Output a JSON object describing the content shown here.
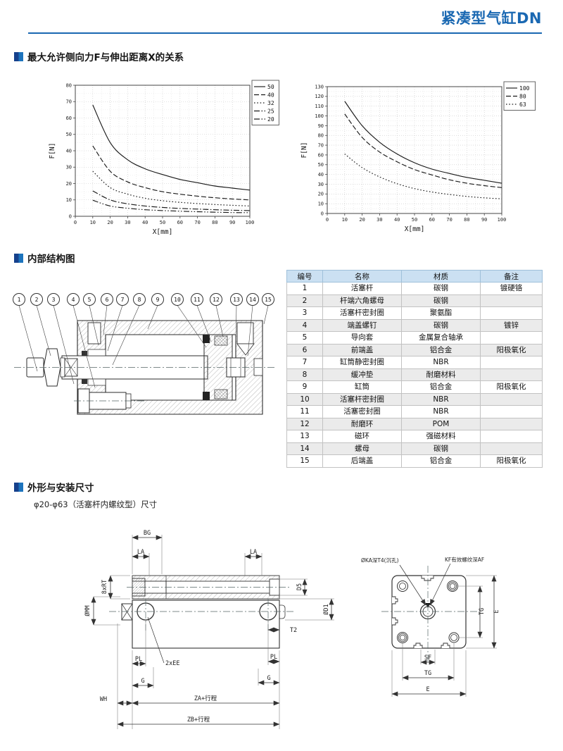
{
  "page": {
    "title": "紧凑型气缸DN",
    "accent_color": "#1a68b2",
    "bullet_dark": "#16418c",
    "bullet_light": "#1d74bd"
  },
  "sections": {
    "force_relation": {
      "title": "最大允许侧向力F与伸出距离X的关系"
    },
    "internal_structure": {
      "title": "内部结构图"
    },
    "outline_dimensions": {
      "title": "外形与安装尺寸",
      "subtitle": "φ20-φ63（活塞杆内螺纹型）尺寸"
    }
  },
  "chart_data": [
    {
      "type": "line",
      "title": "",
      "xlabel": "X[mm]",
      "ylabel": "F[N]",
      "xlim": [
        0,
        100
      ],
      "ylim": [
        0,
        80
      ],
      "xtick_step": 10,
      "ytick_step": 10,
      "grid": true,
      "legend_position": "upper right",
      "x": [
        10,
        20,
        30,
        40,
        50,
        60,
        70,
        80,
        90,
        100
      ],
      "series": [
        {
          "name": "50",
          "dash": "solid",
          "values": [
            68,
            45,
            34.5,
            29,
            25.5,
            22.5,
            20.5,
            18.5,
            17.2,
            16
          ]
        },
        {
          "name": "40",
          "dash": "dashed",
          "values": [
            43,
            27.5,
            21,
            17.5,
            15,
            13.5,
            12.3,
            11.3,
            10.6,
            10
          ]
        },
        {
          "name": "32",
          "dash": "dotted",
          "values": [
            27.5,
            17.5,
            13.5,
            11,
            9.5,
            8.5,
            7.8,
            7.2,
            6.7,
            6.3
          ]
        },
        {
          "name": "25",
          "dash": "dashdot",
          "values": [
            15.5,
            10,
            7.6,
            6.3,
            5.4,
            4.8,
            4.4,
            4.0,
            3.7,
            3.5
          ]
        },
        {
          "name": "20",
          "dash": "dashdotdot",
          "values": [
            9.8,
            6.3,
            4.9,
            4.0,
            3.5,
            3.1,
            2.8,
            2.5,
            2.3,
            2.2
          ]
        }
      ]
    },
    {
      "type": "line",
      "title": "",
      "xlabel": "X[mm]",
      "ylabel": "F[N]",
      "xlim": [
        0,
        100
      ],
      "ylim": [
        0,
        130
      ],
      "xtick_step": 10,
      "ytick_step": 10,
      "grid": true,
      "legend_position": "upper right",
      "x": [
        10,
        20,
        30,
        40,
        50,
        60,
        70,
        80,
        90,
        100
      ],
      "series": [
        {
          "name": "100",
          "dash": "solid",
          "values": [
            115,
            90,
            73,
            61,
            52,
            45.5,
            41,
            37,
            34,
            31
          ]
        },
        {
          "name": "80",
          "dash": "dashed",
          "values": [
            102,
            78,
            63,
            53,
            45,
            39.5,
            34.5,
            31,
            28.5,
            26.5
          ]
        },
        {
          "name": "63",
          "dash": "dotted",
          "values": [
            61,
            47,
            37.5,
            30.5,
            25.5,
            22,
            19.5,
            17.5,
            16,
            15
          ]
        }
      ]
    }
  ],
  "parts_table": {
    "headers": [
      "编号",
      "名称",
      "材质",
      "备注"
    ],
    "rows": [
      [
        "1",
        "活塞杆",
        "碳钢",
        "镀硬铬"
      ],
      [
        "2",
        "杆端六角螺母",
        "碳钢",
        ""
      ],
      [
        "3",
        "活塞杆密封圈",
        "聚氨酯",
        ""
      ],
      [
        "4",
        "端盖螺钉",
        "碳钢",
        "镀锌"
      ],
      [
        "5",
        "导向套",
        "金属复合轴承",
        ""
      ],
      [
        "6",
        "前端盖",
        "铝合金",
        "阳极氧化"
      ],
      [
        "7",
        "缸筒静密封圈",
        "NBR",
        ""
      ],
      [
        "8",
        "缓冲垫",
        "耐磨材料",
        ""
      ],
      [
        "9",
        "缸筒",
        "铝合金",
        "阳极氧化"
      ],
      [
        "10",
        "活塞杆密封圈",
        "NBR",
        ""
      ],
      [
        "11",
        "活塞密封圈",
        "NBR",
        ""
      ],
      [
        "12",
        "耐磨环",
        "POM",
        ""
      ],
      [
        "13",
        "磁环",
        "强磁材料",
        ""
      ],
      [
        "14",
        "螺母",
        "碳钢",
        ""
      ],
      [
        "15",
        "后端盖",
        "铝合金",
        "阳极氧化"
      ]
    ]
  },
  "outline_drawing": {
    "side_view": {
      "bg": "BG",
      "la_left": "LA",
      "la_right": "LA",
      "rt": "8xRT",
      "d5": "D5",
      "d1": "ØD1",
      "mm": "ØMM",
      "t2": "T2",
      "pl_left": "PL",
      "pl_right": "PL",
      "ee": "2xEE",
      "g_left": "G",
      "g_right": "G",
      "wh": "WH",
      "za": "ZA+行程",
      "zb": "ZB+行程"
    },
    "face_view": {
      "ka": "ØKA深T4(沉孔)",
      "kf": "KF有效螺纹深AF",
      "tg_right": "TG",
      "e_right": "E",
      "sf": "SF",
      "tg_bottom": "TG",
      "e_bottom": "E"
    }
  }
}
